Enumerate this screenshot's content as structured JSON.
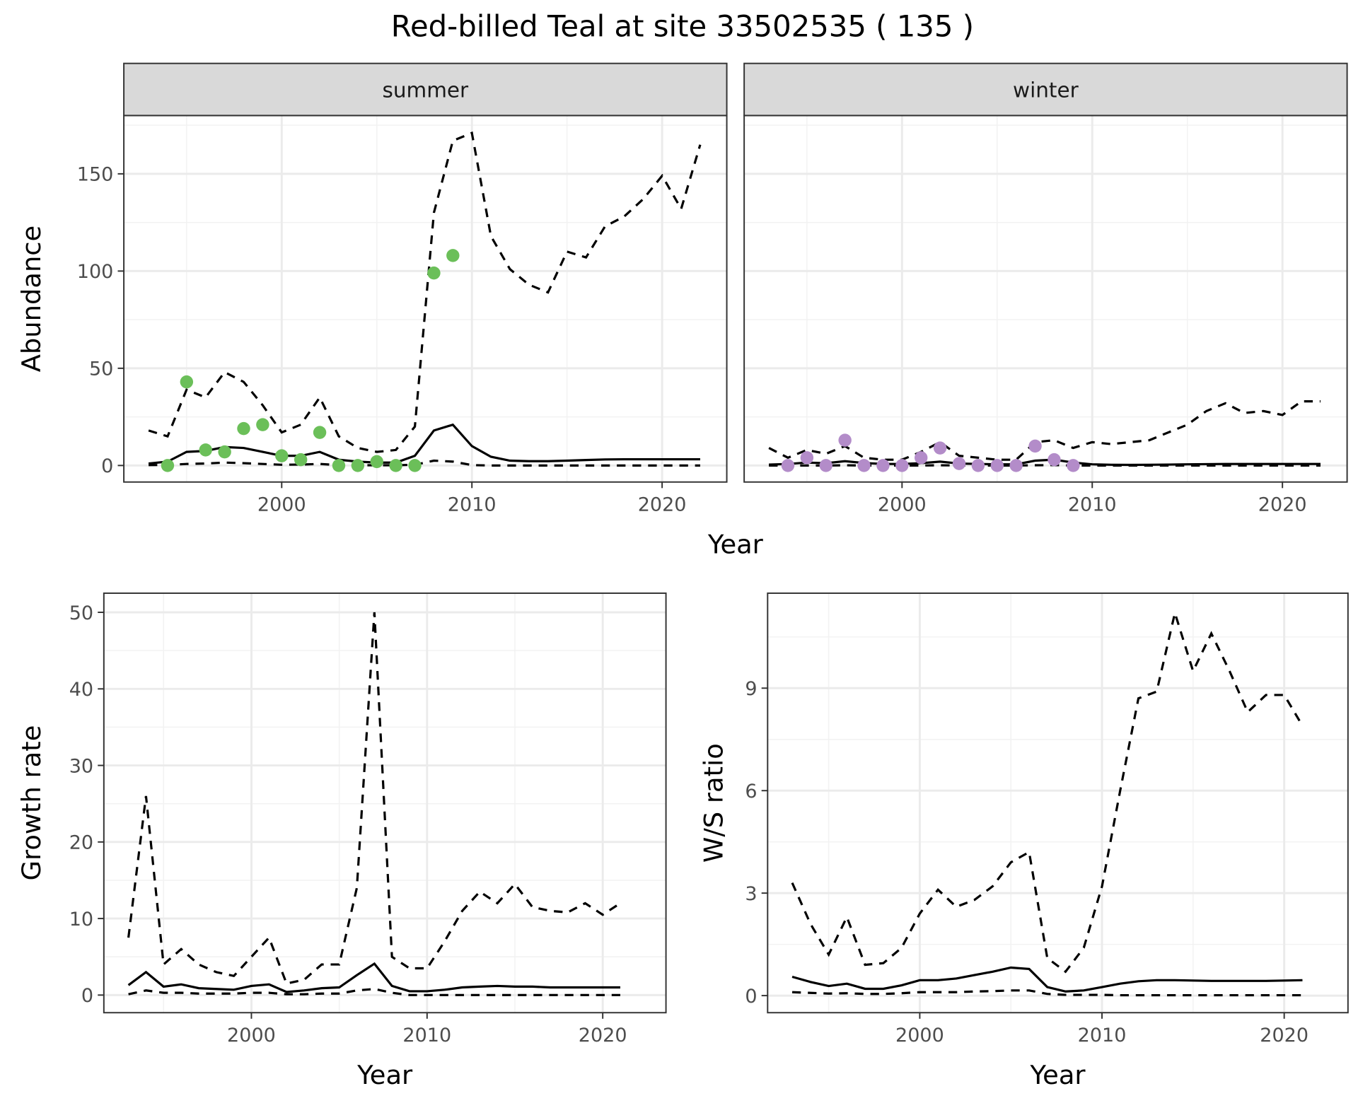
{
  "title": "Red-billed Teal at site 33502535 ( 135 )",
  "colors": {
    "summer_points": "#6bbf59",
    "winter_points": "#b38cc9",
    "lines": "#000000",
    "strip_bg": "#d9d9d9",
    "grid": "#ebebeb"
  },
  "chart_data": [
    {
      "type": "line+scatter",
      "facet": "summer",
      "xlabel": "Year",
      "ylabel": "Abundance",
      "xlim": [
        1991.7,
        2023.4
      ],
      "ylim": [
        -8.5,
        180
      ],
      "grid": true,
      "xticks": [
        2000,
        2010,
        2020
      ],
      "yticks": [
        0,
        50,
        100,
        150
      ],
      "points": {
        "x": [
          1994,
          1995,
          1996,
          1997,
          1998,
          1999,
          2000,
          2001,
          2002,
          2003,
          2004,
          2005,
          2006,
          2007,
          2008,
          2009
        ],
        "y": [
          0,
          43,
          8,
          7,
          19,
          21,
          5,
          3,
          17,
          0,
          0,
          2,
          0,
          0,
          99,
          108
        ]
      },
      "x": [
        1993,
        1994,
        1995,
        1996,
        1997,
        1998,
        1999,
        2000,
        2001,
        2002,
        2003,
        2004,
        2005,
        2006,
        2007,
        2008,
        2009,
        2010,
        2011,
        2012,
        2013,
        2014,
        2015,
        2016,
        2017,
        2018,
        2019,
        2020,
        2021,
        2022
      ],
      "mean": [
        1,
        2,
        7,
        7.5,
        9.5,
        9,
        7,
        5,
        5,
        7,
        3,
        2,
        1.5,
        1.5,
        5,
        18,
        21,
        10,
        4.5,
        2.5,
        2.2,
        2.2,
        2.5,
        2.8,
        3.1,
        3.2,
        3.2,
        3.2,
        3.2,
        3.2
      ],
      "upper": [
        18,
        15,
        39,
        35,
        48,
        43,
        31,
        17,
        21,
        35,
        15,
        9,
        7,
        8,
        20,
        130,
        167,
        171,
        118,
        101,
        93,
        89,
        110,
        107,
        123,
        128,
        137,
        149,
        132,
        165
      ],
      "lower": [
        0.2,
        0.3,
        0.8,
        1,
        1.5,
        1.2,
        0.8,
        0.4,
        0.5,
        0.8,
        0.2,
        0.1,
        0.1,
        0.1,
        0.4,
        2.5,
        2,
        0.2,
        0,
        0,
        0,
        0,
        0,
        0,
        0,
        0,
        0,
        0,
        0,
        0
      ]
    },
    {
      "type": "line+scatter",
      "facet": "winter",
      "xlabel": "Year",
      "ylabel": "Abundance",
      "xlim": [
        1991.7,
        2023.4
      ],
      "ylim": [
        -8.5,
        180
      ],
      "grid": true,
      "xticks": [
        2000,
        2010,
        2020
      ],
      "yticks": [
        0,
        50,
        100,
        150
      ],
      "points": {
        "x": [
          1994,
          1995,
          1996,
          1997,
          1998,
          1999,
          2000,
          2001,
          2002,
          2003,
          2004,
          2005,
          2006,
          2007,
          2008,
          2009
        ],
        "y": [
          0,
          4,
          0,
          13,
          0,
          0,
          0,
          4,
          9,
          1,
          0,
          0,
          0,
          10,
          3,
          0
        ]
      },
      "x": [
        1993,
        1994,
        1995,
        1996,
        1997,
        1998,
        1999,
        2000,
        2001,
        2002,
        2003,
        2004,
        2005,
        2006,
        2007,
        2008,
        2009,
        2010,
        2011,
        2012,
        2013,
        2014,
        2015,
        2016,
        2017,
        2018,
        2019,
        2020,
        2021,
        2022
      ],
      "mean": [
        0.5,
        0.8,
        1.5,
        1.2,
        2.2,
        1.3,
        0.8,
        0.8,
        1.2,
        2,
        1,
        0.8,
        0.6,
        0.6,
        2.5,
        3,
        1.5,
        0.6,
        0.4,
        0.3,
        0.4,
        0.5,
        0.6,
        0.7,
        0.8,
        0.8,
        0.8,
        0.8,
        0.8,
        0.8
      ],
      "upper": [
        9,
        4,
        8,
        6,
        10,
        4,
        3,
        3,
        7,
        12,
        5,
        4,
        3,
        3,
        12,
        13,
        9,
        12,
        11,
        12,
        13,
        17,
        21,
        28,
        32,
        27,
        28,
        26,
        33,
        33
      ],
      "lower": [
        0,
        0,
        0,
        0,
        0.1,
        0,
        0,
        0,
        0,
        0.1,
        0,
        0,
        0,
        0,
        0.1,
        0.2,
        0,
        0,
        0,
        0,
        0,
        0,
        0,
        0,
        0,
        0,
        0,
        0,
        0,
        0
      ]
    },
    {
      "type": "line",
      "xlabel": "Year",
      "ylabel": "Growth rate",
      "xlim": [
        1991.6,
        2023.6
      ],
      "ylim": [
        -2.3,
        52.5
      ],
      "grid": true,
      "xticks": [
        2000,
        2010,
        2020
      ],
      "yticks": [
        0,
        10,
        20,
        30,
        40,
        50
      ],
      "x": [
        1993,
        1994,
        1995,
        1996,
        1997,
        1998,
        1999,
        2000,
        2001,
        2002,
        2003,
        2004,
        2005,
        2006,
        2007,
        2008,
        2009,
        2010,
        2011,
        2012,
        2013,
        2014,
        2015,
        2016,
        2017,
        2018,
        2019,
        2020,
        2021
      ],
      "mean": [
        1.3,
        3,
        1.1,
        1.4,
        0.9,
        0.8,
        0.7,
        1.2,
        1.4,
        0.4,
        0.6,
        0.9,
        1,
        2.6,
        4.1,
        1.2,
        0.5,
        0.5,
        0.7,
        1,
        1.1,
        1.2,
        1.1,
        1.1,
        1,
        1,
        1,
        1,
        1
      ],
      "upper": [
        7.5,
        26,
        4,
        6,
        4,
        3,
        2.5,
        5,
        7.5,
        1.5,
        2,
        4,
        4,
        14,
        50,
        5,
        3.5,
        3.5,
        7,
        11,
        13.5,
        12,
        14.5,
        11.5,
        11,
        10.8,
        12,
        10.5,
        12
      ],
      "lower": [
        0.1,
        0.6,
        0.3,
        0.3,
        0.2,
        0.2,
        0.2,
        0.3,
        0.3,
        0.1,
        0.1,
        0.2,
        0.2,
        0.6,
        0.8,
        0.3,
        0,
        0,
        0,
        0,
        0,
        0,
        0,
        0,
        0,
        0,
        0,
        0,
        0
      ]
    },
    {
      "type": "line",
      "xlabel": "Year",
      "ylabel": "W/S ratio",
      "xlim": [
        1991.65,
        2023.5
      ],
      "ylim": [
        -0.5,
        11.78
      ],
      "grid": true,
      "xticks": [
        2000,
        2010,
        2020
      ],
      "yticks": [
        0,
        3,
        6,
        9
      ],
      "x": [
        1993,
        1994,
        1995,
        1996,
        1997,
        1998,
        1999,
        2000,
        2001,
        2002,
        2003,
        2004,
        2005,
        2006,
        2007,
        2008,
        2009,
        2010,
        2011,
        2012,
        2013,
        2014,
        2015,
        2016,
        2017,
        2018,
        2019,
        2020,
        2021
      ],
      "mean": [
        0.55,
        0.4,
        0.28,
        0.35,
        0.2,
        0.2,
        0.3,
        0.45,
        0.45,
        0.5,
        0.6,
        0.7,
        0.82,
        0.78,
        0.25,
        0.12,
        0.15,
        0.25,
        0.35,
        0.42,
        0.45,
        0.45,
        0.44,
        0.43,
        0.43,
        0.43,
        0.43,
        0.44,
        0.45
      ],
      "upper": [
        3.3,
        2.1,
        1.2,
        2.3,
        0.9,
        0.95,
        1.4,
        2.4,
        3.1,
        2.6,
        2.8,
        3.2,
        3.9,
        4.2,
        1.1,
        0.7,
        1.4,
        3.2,
        6,
        8.7,
        8.9,
        11.2,
        9.5,
        10.6,
        9.5,
        8.3,
        8.8,
        8.8,
        7.9
      ],
      "lower": [
        0.1,
        0.08,
        0.06,
        0.07,
        0.05,
        0.05,
        0.07,
        0.1,
        0.1,
        0.1,
        0.12,
        0.13,
        0.15,
        0.15,
        0.05,
        0.02,
        0.02,
        0.02,
        0.01,
        0.01,
        0.01,
        0.01,
        0.01,
        0.01,
        0.01,
        0.01,
        0.01,
        0.01,
        0.01
      ]
    }
  ]
}
